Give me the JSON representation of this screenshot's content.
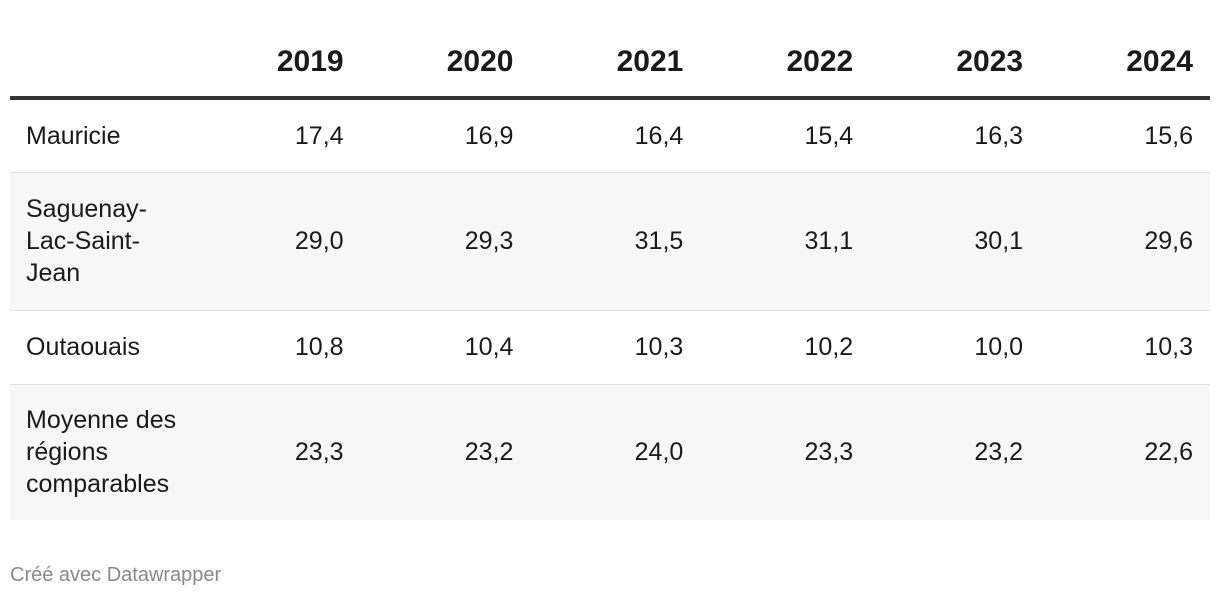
{
  "chart_data": {
    "type": "table",
    "columns": [
      "",
      "2019",
      "2020",
      "2021",
      "2022",
      "2023",
      "2024"
    ],
    "rows": [
      {
        "label": "Mauricie",
        "values": [
          "17,4",
          "16,9",
          "16,4",
          "15,4",
          "16,3",
          "15,6"
        ]
      },
      {
        "label": "Saguenay-Lac-Saint-Jean",
        "values": [
          "29,0",
          "29,3",
          "31,5",
          "31,1",
          "30,1",
          "29,6"
        ]
      },
      {
        "label": "Outaouais",
        "values": [
          "10,8",
          "10,4",
          "10,3",
          "10,2",
          "10,0",
          "10,3"
        ]
      },
      {
        "label": "Moyenne des régions comparables",
        "values": [
          "23,3",
          "23,2",
          "24,0",
          "23,3",
          "23,2",
          "22,6"
        ]
      }
    ]
  },
  "footer": {
    "credit": "Créé avec Datawrapper"
  }
}
